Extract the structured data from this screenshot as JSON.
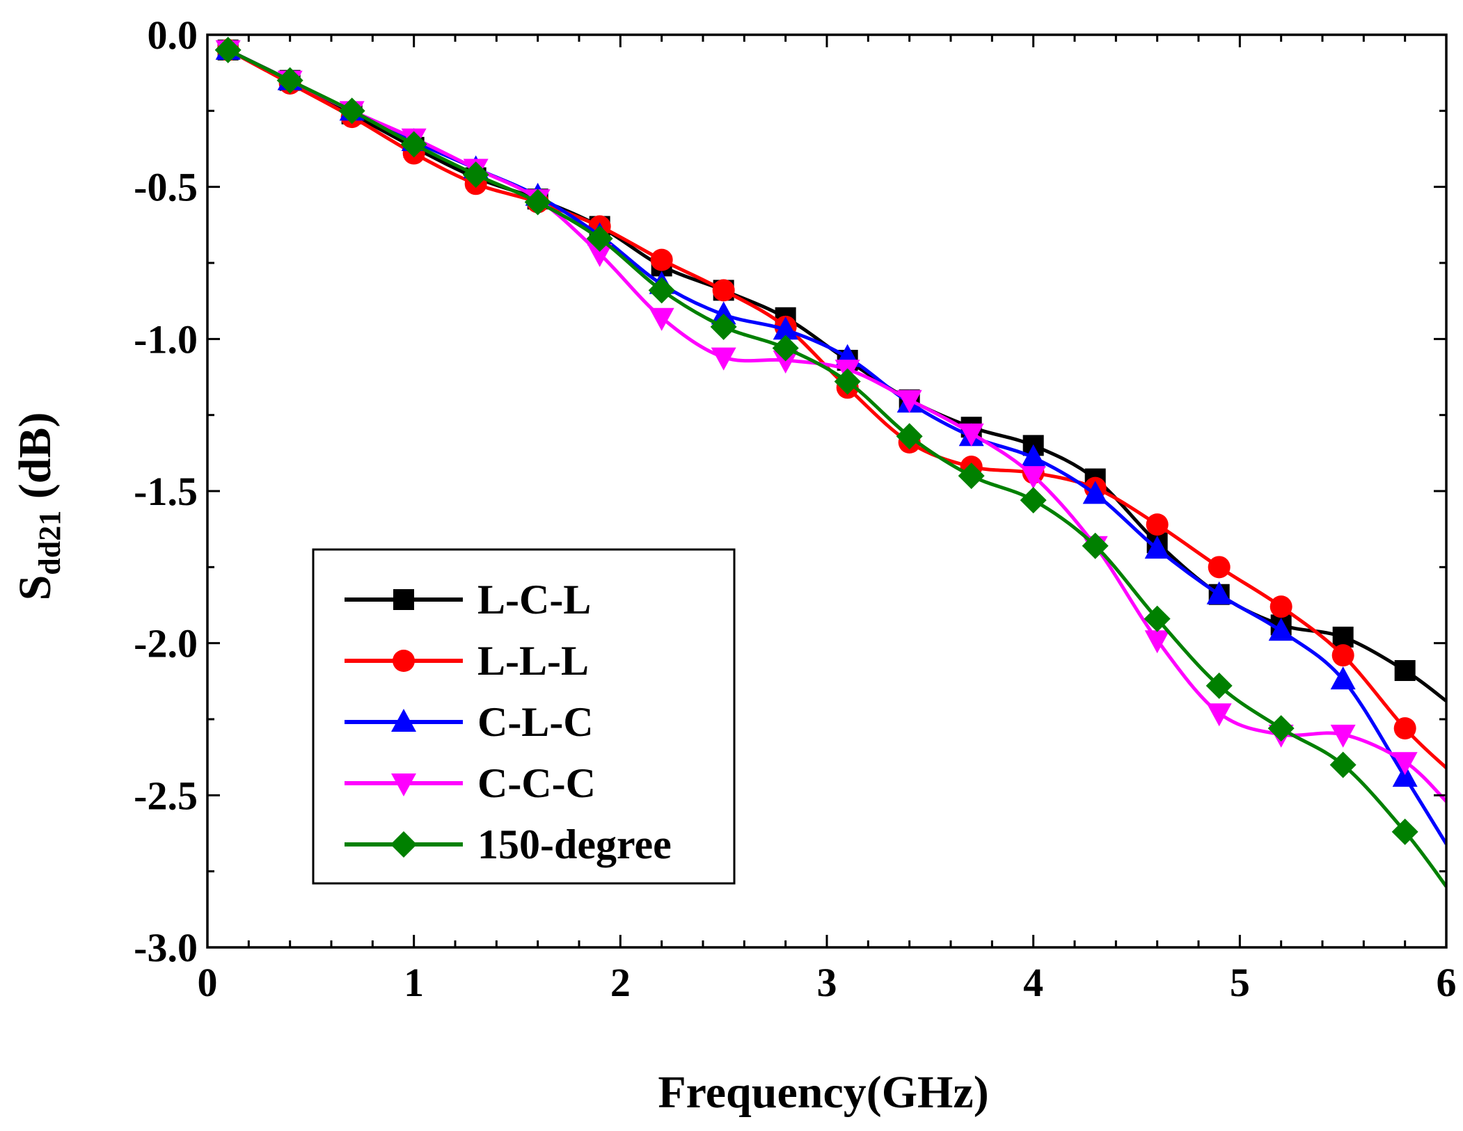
{
  "chart_data": {
    "type": "line",
    "title": "",
    "xlabel": "Frequency(GHz)",
    "ylabel_main": "S",
    "ylabel_sub": "dd21",
    "ylabel_unit": " (dB)",
    "xlim": [
      0,
      6
    ],
    "ylim": [
      -3.0,
      0.0
    ],
    "x_ticks": [
      0,
      1,
      2,
      3,
      4,
      5,
      6
    ],
    "x_tick_labels": [
      "0",
      "1",
      "2",
      "3",
      "4",
      "5",
      "6"
    ],
    "y_ticks": [
      0.0,
      -0.5,
      -1.0,
      -1.5,
      -2.0,
      -2.5,
      -3.0
    ],
    "y_tick_labels": [
      "0.0",
      "-0.5",
      "-1.0",
      "-1.5",
      "-2.0",
      "-2.5",
      "-3.0"
    ],
    "grid": false,
    "legend_position": "lower-left",
    "series": [
      {
        "name": "L-C-L",
        "color": "#000000",
        "marker": "square",
        "x": [
          0.1,
          0.4,
          0.7,
          1.0,
          1.3,
          1.6,
          1.9,
          2.2,
          2.5,
          2.8,
          3.1,
          3.4,
          3.7,
          4.0,
          4.3,
          4.6,
          4.9,
          5.2,
          5.5,
          5.8
        ],
        "y": [
          -0.05,
          -0.15,
          -0.26,
          -0.37,
          -0.47,
          -0.54,
          -0.63,
          -0.76,
          -0.84,
          -0.93,
          -1.07,
          -1.2,
          -1.29,
          -1.35,
          -1.46,
          -1.67,
          -1.84,
          -1.94,
          -1.98,
          -2.09
        ],
        "line_end": [
          6.0,
          -2.19
        ]
      },
      {
        "name": "L-L-L",
        "color": "#ff0000",
        "marker": "circle",
        "x": [
          0.1,
          0.4,
          0.7,
          1.0,
          1.3,
          1.6,
          1.9,
          2.2,
          2.5,
          2.8,
          3.1,
          3.4,
          3.7,
          4.0,
          4.3,
          4.6,
          4.9,
          5.2,
          5.5,
          5.8
        ],
        "y": [
          -0.05,
          -0.16,
          -0.27,
          -0.39,
          -0.49,
          -0.55,
          -0.63,
          -0.74,
          -0.84,
          -0.96,
          -1.16,
          -1.34,
          -1.42,
          -1.44,
          -1.49,
          -1.61,
          -1.75,
          -1.88,
          -2.04,
          -2.28
        ],
        "line_end": [
          6.0,
          -2.41
        ]
      },
      {
        "name": "C-L-C",
        "color": "#0000ff",
        "marker": "triangle-up",
        "x": [
          0.1,
          0.4,
          0.7,
          1.0,
          1.3,
          1.6,
          1.9,
          2.2,
          2.5,
          2.8,
          3.1,
          3.4,
          3.7,
          4.0,
          4.3,
          4.6,
          4.9,
          5.2,
          5.5,
          5.8
        ],
        "y": [
          -0.05,
          -0.15,
          -0.25,
          -0.35,
          -0.44,
          -0.53,
          -0.66,
          -0.82,
          -0.92,
          -0.97,
          -1.06,
          -1.21,
          -1.32,
          -1.39,
          -1.51,
          -1.69,
          -1.84,
          -1.96,
          -2.12,
          -2.44
        ],
        "line_end": [
          6.0,
          -2.66
        ]
      },
      {
        "name": "C-C-C",
        "color": "#ff00ff",
        "marker": "triangle-down",
        "x": [
          0.1,
          0.4,
          0.7,
          1.0,
          1.3,
          1.6,
          1.9,
          2.2,
          2.5,
          2.8,
          3.1,
          3.4,
          3.7,
          4.0,
          4.3,
          4.6,
          4.9,
          5.2,
          5.5,
          5.8
        ],
        "y": [
          -0.05,
          -0.15,
          -0.25,
          -0.34,
          -0.44,
          -0.54,
          -0.72,
          -0.93,
          -1.06,
          -1.07,
          -1.1,
          -1.2,
          -1.31,
          -1.45,
          -1.68,
          -1.99,
          -2.23,
          -2.3,
          -2.3,
          -2.39
        ],
        "line_end": [
          6.0,
          -2.52
        ]
      },
      {
        "name": "150-degree",
        "color": "#008000",
        "marker": "diamond",
        "x": [
          0.1,
          0.4,
          0.7,
          1.0,
          1.3,
          1.6,
          1.9,
          2.2,
          2.5,
          2.8,
          3.1,
          3.4,
          3.7,
          4.0,
          4.3,
          4.6,
          4.9,
          5.2,
          5.5,
          5.8
        ],
        "y": [
          -0.05,
          -0.15,
          -0.25,
          -0.36,
          -0.46,
          -0.55,
          -0.67,
          -0.84,
          -0.96,
          -1.03,
          -1.14,
          -1.32,
          -1.45,
          -1.53,
          -1.68,
          -1.92,
          -2.14,
          -2.28,
          -2.4,
          -2.62
        ],
        "line_end": [
          6.0,
          -2.8
        ]
      }
    ]
  }
}
